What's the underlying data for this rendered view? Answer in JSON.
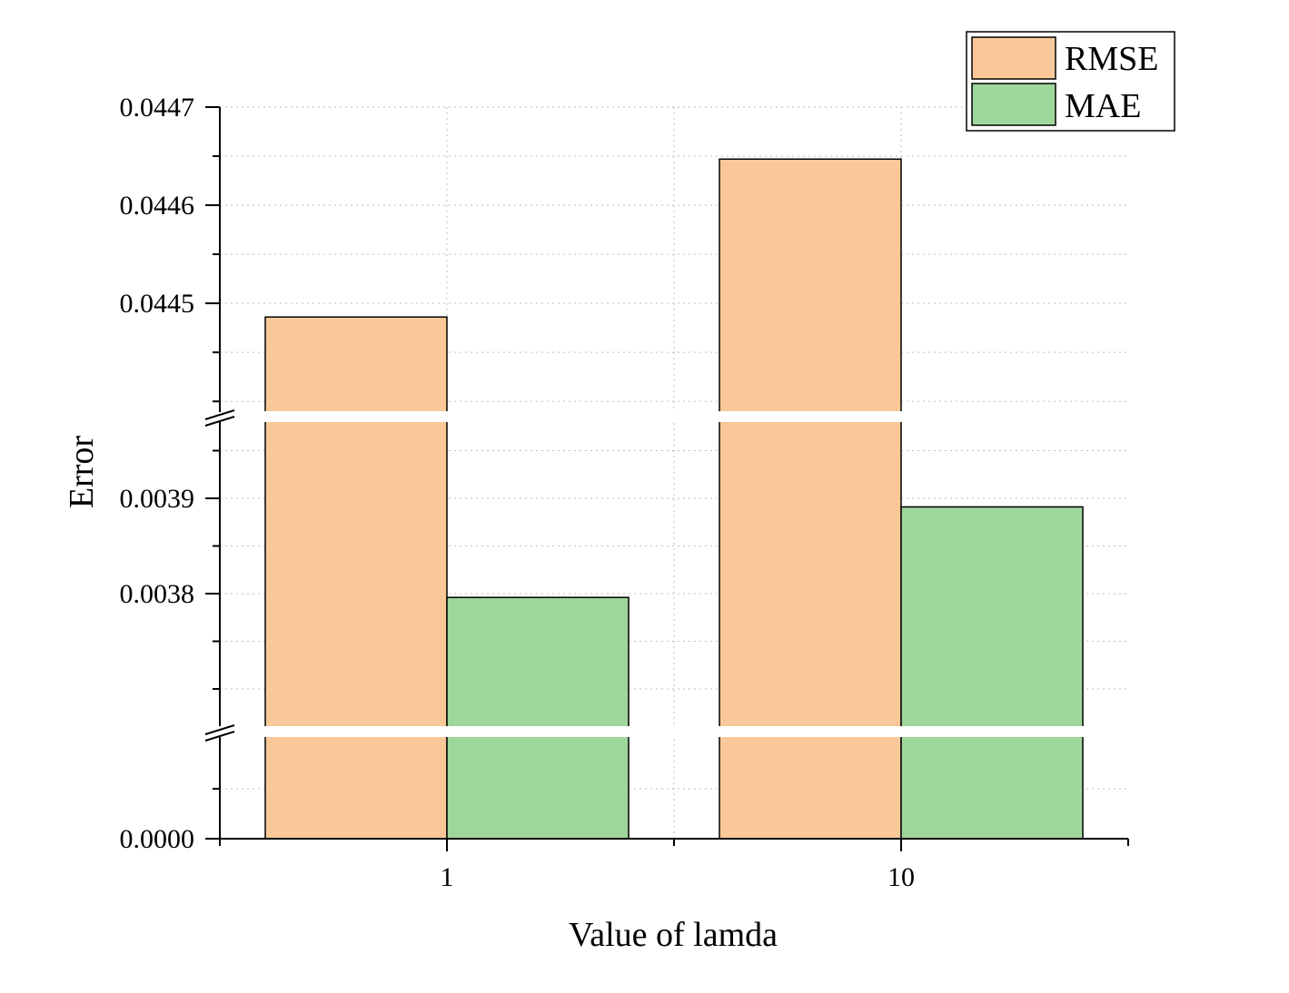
{
  "chart_data": {
    "type": "bar",
    "xlabel": "Value of lamda",
    "ylabel": "Error",
    "categories": [
      "1",
      "10"
    ],
    "series": [
      {
        "name": "RMSE",
        "color": "#FAC898",
        "values": [
          0.044486,
          0.044647
        ]
      },
      {
        "name": "MAE",
        "color": "#9FD69C",
        "values": [
          0.003796,
          0.003891
        ]
      }
    ],
    "y_segments": [
      {
        "range": [
          0.0,
          0.0
        ],
        "ticks": [
          "0.0000"
        ]
      },
      {
        "range": [
          0.00366,
          0.00398
        ],
        "ticks": [
          "0.0038",
          "0.0039"
        ],
        "minor_step": 5e-05
      },
      {
        "range": [
          0.04439,
          0.0447
        ],
        "ticks": [
          "0.0445",
          "0.0446",
          "0.0447"
        ],
        "minor_step": 5e-05
      }
    ],
    "axis_breaks": 2,
    "grid": true,
    "legend": {
      "position": "top-right",
      "entries": [
        "RMSE",
        "MAE"
      ]
    }
  }
}
